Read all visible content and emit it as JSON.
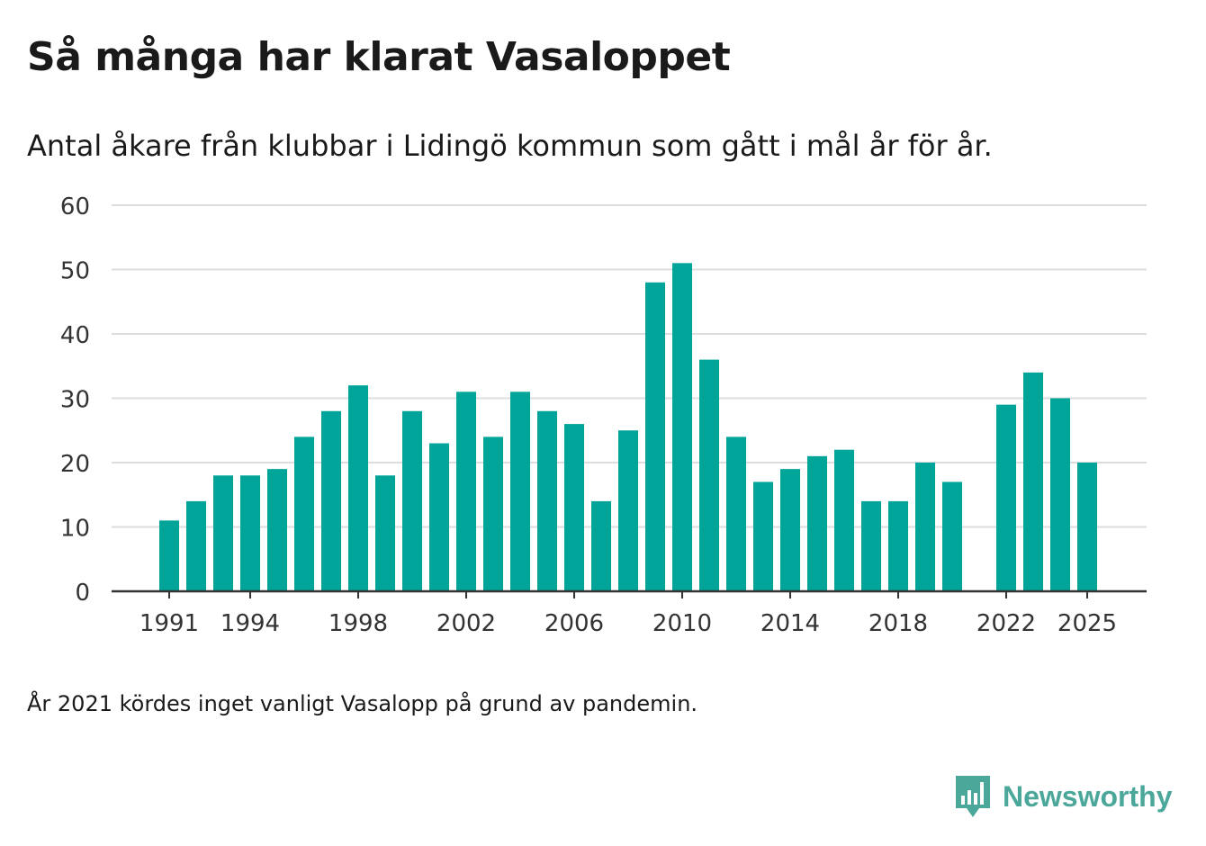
{
  "header": {
    "title": "Så många har klarat Vasaloppet",
    "subtitle": "Antal åkare från klubbar i Lidingö kommun som gått i mål år för år."
  },
  "footnote": "År 2021 kördes inget vanligt Vasalopp på grund av pandemin.",
  "brand": {
    "name": "Newsworthy",
    "icon": "newsworthy-chart-speech-bubble-icon",
    "color": "#4aa79a"
  },
  "chart_data": {
    "type": "bar",
    "title": "Så många har klarat Vasaloppet",
    "subtitle": "Antal åkare från klubbar i Lidingö kommun som gått i mål år för år.",
    "xlabel": "",
    "ylabel": "",
    "ylim": [
      0,
      60
    ],
    "yticks": [
      0,
      10,
      20,
      30,
      40,
      50,
      60
    ],
    "xticks": [
      1991,
      1994,
      1998,
      2002,
      2006,
      2010,
      2014,
      2018,
      2022,
      2025
    ],
    "bar_color": "#00a499",
    "grid": true,
    "legend": "none",
    "categories": [
      1991,
      1992,
      1993,
      1994,
      1995,
      1996,
      1997,
      1998,
      1999,
      2000,
      2001,
      2002,
      2003,
      2004,
      2005,
      2006,
      2007,
      2008,
      2009,
      2010,
      2011,
      2012,
      2013,
      2014,
      2015,
      2016,
      2017,
      2018,
      2019,
      2020,
      2021,
      2022,
      2023,
      2024,
      2025
    ],
    "values": [
      11,
      14,
      18,
      18,
      19,
      24,
      28,
      32,
      18,
      28,
      23,
      31,
      24,
      31,
      28,
      26,
      14,
      25,
      48,
      51,
      36,
      24,
      17,
      19,
      21,
      22,
      14,
      14,
      20,
      17,
      null,
      29,
      34,
      30,
      20
    ]
  }
}
